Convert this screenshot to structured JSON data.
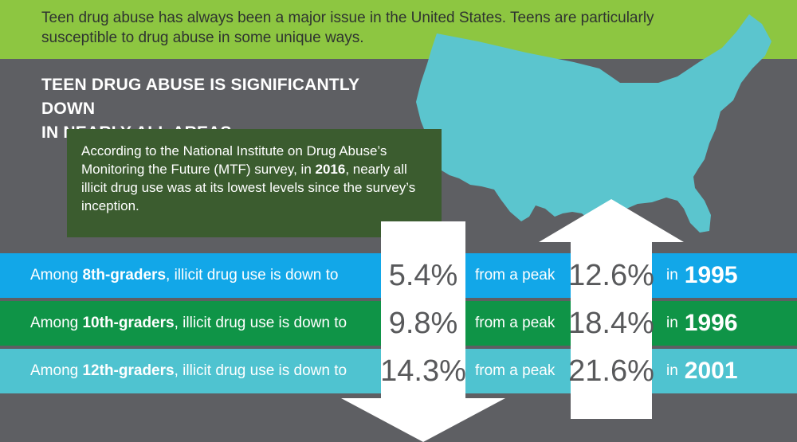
{
  "intro": "Teen drug abuse has always been a major issue in the United States. Teens are particularly susceptible to drug abuse in some unique ways.",
  "heading": {
    "line1": "TEEN DRUG ABUSE IS SIGNIFICANTLY DOWN",
    "line2": "IN NEARLY ALL AREAS"
  },
  "info": {
    "part1": "According to the National Institute on Drug Abuse’s Monitoring the Future (MTF) survey, in ",
    "year": "2016",
    "part2": ", nearly all illicit drug use was at its lowest levels since the survey’s inception."
  },
  "rows": [
    {
      "prefix": "Among ",
      "grade": "8th-graders",
      "suffix": ", illicit drug use is down to",
      "current": "5.4%",
      "peak_label": "from a peak",
      "peak": "12.6%",
      "in_label": "in",
      "year": "1995"
    },
    {
      "prefix": "Among ",
      "grade": "10th-graders",
      "suffix": ", illicit drug use is down to",
      "current": "9.8%",
      "peak_label": "from a peak",
      "peak": "18.4%",
      "in_label": "in",
      "year": "1996"
    },
    {
      "prefix": "Among ",
      "grade": "12th-graders",
      "suffix": ", illicit drug use is down to",
      "current": "14.3%",
      "peak_label": "from a peak",
      "peak": "21.6%",
      "in_label": "in",
      "year": "2001"
    }
  ],
  "colors": {
    "banner": "#8dc641",
    "background": "#5e5f63",
    "map": "#5bc5ce",
    "info_box": "#3b5c2f",
    "row_8th": "#12a7e8",
    "row_10th": "#0f9447",
    "row_12th": "#4fc3d0"
  },
  "icons": [
    "usa-map",
    "down-arrow",
    "up-arrow"
  ]
}
